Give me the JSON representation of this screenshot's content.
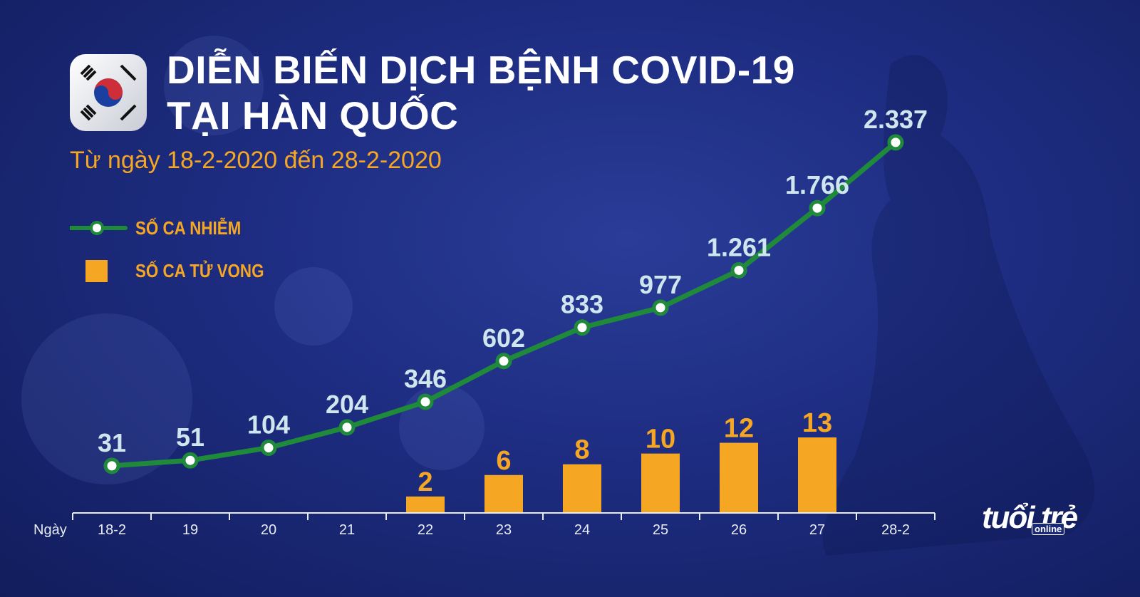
{
  "header": {
    "title_line1": "DIỄN BIẾN DỊCH BỆNH COVID-19",
    "title_line2": "TẠI HÀN QUỐC",
    "subtitle": "Từ ngày 18-2-2020 đến 28-2-2020"
  },
  "logo": {
    "main": "tuổi trẻ",
    "sub": "online"
  },
  "colors": {
    "line": "#1f8a3a",
    "bar": "#f5a623",
    "case_label": "#cfe6ee",
    "axis": "#e8ecf5",
    "background": "#1d2c80"
  },
  "chart_data": {
    "type": "line",
    "x_axis_title": "Ngày",
    "categories": [
      "18-2",
      "19",
      "20",
      "21",
      "22",
      "23",
      "24",
      "25",
      "26",
      "27",
      "28-2"
    ],
    "series": [
      {
        "name": "SỐ CA NHIỄM",
        "type": "line",
        "values": [
          31,
          51,
          104,
          204,
          346,
          602,
          833,
          977,
          1261,
          1766,
          2337
        ],
        "labels": [
          "31",
          "51",
          "104",
          "204",
          "346",
          "602",
          "833",
          "977",
          "1.261",
          "1.766",
          "2.337"
        ]
      },
      {
        "name": "SỐ CA TỬ VONG",
        "type": "bar",
        "values": [
          null,
          null,
          null,
          null,
          2,
          6,
          8,
          10,
          12,
          13,
          null
        ],
        "labels": [
          "",
          "",
          "",
          "",
          "2",
          "6",
          "8",
          "10",
          "12",
          "13",
          ""
        ]
      }
    ],
    "legend_position": "top-left",
    "grid": false
  }
}
